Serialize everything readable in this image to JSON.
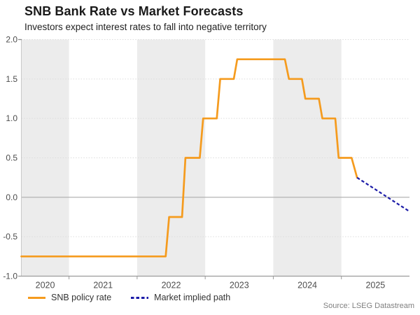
{
  "header": {
    "title": "SNB Bank Rate vs Market Forecasts",
    "subtitle": "Investors expect interest rates to fall into negative territory"
  },
  "source_note": "Source: LSEG Datastream",
  "legend": {
    "items": [
      {
        "label": "SNB policy rate",
        "color": "#F59B1E",
        "line_style": "solid"
      },
      {
        "label": "Market implied path",
        "color": "#1C1CA8",
        "line_style": "dashed"
      }
    ]
  },
  "chart_data": {
    "type": "line",
    "title": "SNB Bank Rate vs Market Forecasts",
    "subtitle": "Investors expect interest rates to fall into negative territory",
    "x_axis": {
      "range": [
        2020.3,
        2026.0
      ],
      "ticks": [
        {
          "label": "2020",
          "year": 2020
        },
        {
          "label": "2021",
          "year": 2021
        },
        {
          "label": "2022",
          "year": 2022
        },
        {
          "label": "2023",
          "year": 2023
        },
        {
          "label": "2024",
          "year": 2024
        },
        {
          "label": "2025",
          "year": 2025
        }
      ],
      "shaded_years": [
        2020,
        2022,
        2024
      ],
      "band_color": "#ECECEC"
    },
    "y_axis": {
      "range": [
        -1.0,
        2.0
      ],
      "ticks": [
        {
          "label": "2.0",
          "value": 2.0
        },
        {
          "label": "1.5",
          "value": 1.5
        },
        {
          "label": "1.0",
          "value": 1.0
        },
        {
          "label": "0.5",
          "value": 0.5
        },
        {
          "label": "0.0",
          "value": 0.0
        },
        {
          "label": "-0.5",
          "value": -0.5
        },
        {
          "label": "-1.0",
          "value": -1.0
        }
      ],
      "zero_line": true,
      "grid": "dotted"
    },
    "series": [
      {
        "name": "SNB policy rate",
        "color": "#F59B1E",
        "dashed": false,
        "stroke_width": 2.7,
        "points": [
          [
            2020.3,
            -0.75
          ],
          [
            2022.42,
            -0.75
          ],
          [
            2022.47,
            -0.25
          ],
          [
            2022.66,
            -0.25
          ],
          [
            2022.71,
            0.5
          ],
          [
            2022.92,
            0.5
          ],
          [
            2022.97,
            1.0
          ],
          [
            2023.17,
            1.0
          ],
          [
            2023.22,
            1.5
          ],
          [
            2023.42,
            1.5
          ],
          [
            2023.47,
            1.75
          ],
          [
            2024.17,
            1.75
          ],
          [
            2024.23,
            1.5
          ],
          [
            2024.42,
            1.5
          ],
          [
            2024.47,
            1.25
          ],
          [
            2024.67,
            1.25
          ],
          [
            2024.72,
            1.0
          ],
          [
            2024.91,
            1.0
          ],
          [
            2024.96,
            0.5
          ],
          [
            2025.15,
            0.5
          ],
          [
            2025.23,
            0.25
          ]
        ]
      },
      {
        "name": "Market implied path",
        "color": "#1C1CA8",
        "dashed": true,
        "stroke_width": 2.2,
        "points": [
          [
            2025.23,
            0.25
          ],
          [
            2026.0,
            -0.18
          ]
        ]
      }
    ]
  }
}
